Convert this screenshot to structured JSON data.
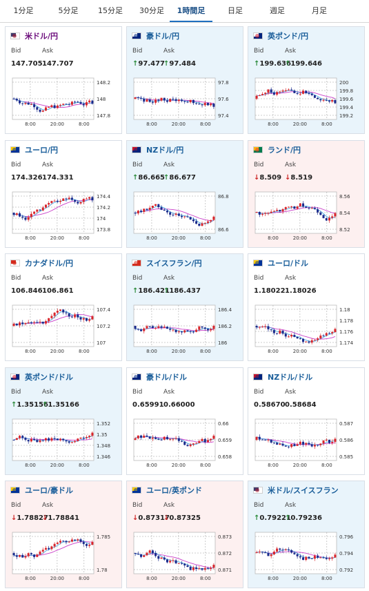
{
  "tabs": [
    "1分足",
    "5分足",
    "15分足",
    "30分足",
    "1時間足",
    "日足",
    "週足",
    "月足"
  ],
  "active_tab": "1時間足",
  "labels": {
    "bid": "Bid",
    "ask": "Ask"
  },
  "pairs": [
    {
      "name": "米ドル/円",
      "bid": "147.705",
      "ask": "147.707",
      "dir": "none",
      "ticks": [
        "148.2",
        "148",
        "147.8"
      ],
      "times": [
        "8:00",
        "20:00",
        "8:00"
      ]
    },
    {
      "name": "豪ドル/円",
      "bid": "97.477",
      "ask": "97.484",
      "dir": "up",
      "ticks": [
        "97.8",
        "97.6",
        "97.4"
      ],
      "times": [
        "8:00",
        "20:00",
        "8:00"
      ]
    },
    {
      "name": "英ポンド/円",
      "bid": "199.636",
      "ask": "199.646",
      "dir": "up",
      "ticks": [
        "200",
        "199.8",
        "199.6",
        "199.4",
        "199.2"
      ],
      "times": [
        "8:00",
        "20:00",
        "8:00"
      ]
    },
    {
      "name": "ユーロ/円",
      "bid": "174.326",
      "ask": "174.331",
      "dir": "none",
      "ticks": [
        "174.4",
        "174.2",
        "174",
        "173.8"
      ],
      "times": [
        "8:00",
        "20:00",
        "8:00"
      ]
    },
    {
      "name": "NZドル/円",
      "bid": "86.665",
      "ask": "86.677",
      "dir": "up",
      "ticks": [
        "86.8",
        "86.6"
      ],
      "times": [
        "8:00",
        "20:00",
        "8:00"
      ]
    },
    {
      "name": "ランド/円",
      "bid": "8.509",
      "ask": "8.519",
      "dir": "down",
      "ticks": [
        "8.56",
        "8.54",
        "8.52"
      ],
      "times": [
        "8:00",
        "20:00",
        "8:00"
      ]
    },
    {
      "name": "カナダドル/円",
      "bid": "106.846",
      "ask": "106.861",
      "dir": "none",
      "ticks": [
        "107.4",
        "107.2",
        "107"
      ],
      "times": [
        "8:00",
        "20:00",
        "8:00"
      ]
    },
    {
      "name": "スイスフラン/円",
      "bid": "186.421",
      "ask": "186.437",
      "dir": "up",
      "ticks": [
        "186.4",
        "186.2",
        "186"
      ],
      "times": [
        "8:00",
        "20:00",
        "8:00"
      ]
    },
    {
      "name": "ユーロ/ドル",
      "bid": "1.18022",
      "ask": "1.18026",
      "dir": "none",
      "ticks": [
        "1.18",
        "1.178",
        "1.176",
        "1.174"
      ],
      "times": [
        "8:00",
        "20:00",
        "8:00"
      ]
    },
    {
      "name": "英ポンド/ドル",
      "bid": "1.35156",
      "ask": "1.35166",
      "dir": "up",
      "ticks": [
        "1.352",
        "1.35",
        "1.348",
        "1.346"
      ],
      "times": [
        "8:00",
        "20:00",
        "8:00"
      ]
    },
    {
      "name": "豪ドル/ドル",
      "bid": "0.65991",
      "ask": "0.66000",
      "dir": "none",
      "ticks": [
        "0.66",
        "0.659",
        "0.658"
      ],
      "times": [
        "8:00",
        "20:00",
        "8:00"
      ]
    },
    {
      "name": "NZドル/ドル",
      "bid": "0.58670",
      "ask": "0.58684",
      "dir": "none",
      "ticks": [
        "0.587",
        "0.586",
        "0.585"
      ],
      "times": [
        "8:00",
        "20:00",
        "8:00"
      ]
    },
    {
      "name": "ユーロ/豪ドル",
      "bid": "1.78827",
      "ask": "1.78841",
      "dir": "down",
      "ticks": [
        "1.785",
        "1.78"
      ],
      "times": [
        "8:00",
        "20:00",
        "8:00"
      ]
    },
    {
      "name": "ユーロ/英ポンド",
      "bid": "0.87317",
      "ask": "0.87325",
      "dir": "down",
      "ticks": [
        "0.873",
        "0.872",
        "0.871"
      ],
      "times": [
        "8:00",
        "20:00",
        "8:00"
      ]
    },
    {
      "name": "米ドル/スイスフラン",
      "bid": "0.79221",
      "ask": "0.79236",
      "dir": "up",
      "ticks": [
        "0.796",
        "0.794",
        "0.792"
      ],
      "times": [
        "8:00",
        "20:00",
        "8:00"
      ]
    }
  ],
  "colors": {
    "up_bg": "#e9f4fb",
    "down_bg": "#fdf0f0",
    "candle_up": "#d9262c",
    "candle_down": "#1a2a8c",
    "ma_short": "#4aa8e0",
    "ma_long": "#c83cc8",
    "arrow_up": "#2a8a3a",
    "arrow_down": "#cc2222"
  },
  "flags": [
    "us",
    "au",
    "gb",
    "eu",
    "nz",
    "za",
    "ca",
    "ch",
    "eu",
    "gb",
    "au",
    "nz",
    "eu",
    "eu",
    "us"
  ]
}
